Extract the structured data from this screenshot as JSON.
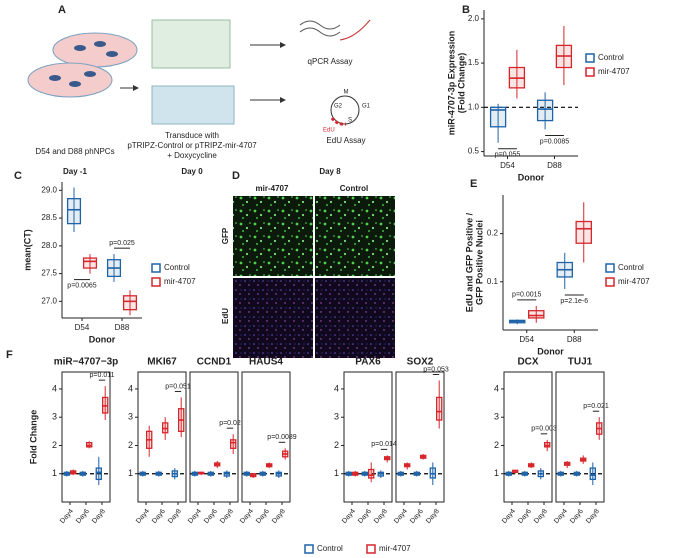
{
  "panel_labels": [
    "A",
    "B",
    "C",
    "D",
    "E",
    "F"
  ],
  "schematic": {
    "cells_label": "D54 and D88 phNPCs",
    "day_1": "Day -1",
    "transduce": [
      "Transduce with",
      "pTRIPZ-Control or pTRIPZ-mir-4707",
      "+ Doxycycline"
    ],
    "day_0": "Day 0",
    "qpcr": "qPCR Assay",
    "edu": "EdU Assay",
    "day_8": "Day 8",
    "cycle": [
      "M",
      "G1",
      "G2",
      "S",
      "EdU"
    ]
  },
  "microscopy": {
    "columns": [
      "mir-4707",
      "Control"
    ],
    "rows": [
      "GFP",
      "EdU"
    ]
  },
  "chart_data": [
    {
      "type": "box",
      "xlabel": "Donor",
      "ylabel": [
        "miR-4707-3p Expression",
        "(Fold Change)"
      ],
      "categories": [
        "D54",
        "D88"
      ],
      "series": [
        {
          "name": "Control",
          "color": "#1f63a8",
          "values": [
            [
              0.6,
              0.78,
              0.97,
              1.0,
              1.04
            ],
            [
              0.75,
              0.85,
              0.98,
              1.08,
              1.17
            ]
          ]
        },
        {
          "name": "mir-4707",
          "color": "#d6262b",
          "values": [
            [
              1.1,
              1.22,
              1.33,
              1.45,
              1.65
            ],
            [
              1.25,
              1.45,
              1.58,
              1.7,
              1.92
            ]
          ]
        }
      ],
      "ylim": [
        0.45,
        2.1
      ],
      "yticks": [
        {
          "value": 0.5,
          "label": "0.5"
        },
        {
          "value": 1,
          "label": "1.0"
        },
        {
          "value": 1.5,
          "label": "1.5"
        },
        {
          "value": 2,
          "label": "2.0"
        }
      ],
      "refline": 1,
      "annotations": [
        "p=0.055",
        "p=0.0085"
      ]
    },
    {
      "type": "box",
      "xlabel": "Donor",
      "ylabel": [
        "mean(CT)"
      ],
      "categories": [
        "D54",
        "D88"
      ],
      "series": [
        {
          "name": "Control",
          "color": "#1f63a8",
          "values": [
            [
              28.25,
              28.4,
              28.65,
              28.85,
              29.05
            ],
            [
              27.35,
              27.45,
              27.6,
              27.75,
              27.85
            ]
          ]
        },
        {
          "name": "mir-4707",
          "color": "#d6262b",
          "values": [
            [
              27.5,
              27.6,
              27.72,
              27.78,
              27.85
            ],
            [
              26.75,
              26.85,
              27.0,
              27.1,
              27.2
            ]
          ]
        }
      ],
      "ylim": [
        26.7,
        29.15
      ],
      "yticks": [
        {
          "value": 27,
          "label": "27.0"
        },
        27.5,
        {
          "value": 28,
          "label": "28.0"
        },
        28.5,
        {
          "value": 29,
          "label": "29.0"
        }
      ],
      "annotations": [
        "p=0.0065",
        "p=0.025"
      ]
    },
    {
      "type": "box",
      "xlabel": "Donor",
      "ylabel": [
        "EdU and GFP Positive /",
        "GFP Positive Nuclei"
      ],
      "categories": [
        "D54",
        "D88"
      ],
      "series": [
        {
          "name": "Control",
          "color": "#1f63a8",
          "values": [
            [
              0.012,
              0.015,
              0.018,
              0.02,
              0.022
            ],
            [
              0.085,
              0.11,
              0.125,
              0.14,
              0.16
            ]
          ]
        },
        {
          "name": "mir-4707",
          "color": "#d6262b",
          "values": [
            [
              0.015,
              0.025,
              0.03,
              0.04,
              0.05
            ],
            [
              0.14,
              0.18,
              0.21,
              0.225,
              0.265
            ]
          ]
        }
      ],
      "ylim": [
        0,
        0.28
      ],
      "yticks": [
        0.1,
        0.2
      ],
      "annotations": [
        "p=0.0015",
        "p=2.1e-6"
      ]
    },
    {
      "type": "box",
      "title": "miR−4707−3p",
      "ylabel": [
        "Fold Change"
      ],
      "categories": [
        "Day4",
        "Day6",
        "Day8"
      ],
      "series": [
        {
          "name": "Control",
          "color": "#1f63a8",
          "values": [
            [
              0.9,
              0.95,
              1,
              1.05,
              1.1
            ],
            [
              0.9,
              0.95,
              1,
              1.05,
              1.1
            ],
            [
              0.6,
              0.8,
              1.05,
              1.2,
              1.6
            ]
          ]
        },
        {
          "name": "mir-4707",
          "color": "#d6262b",
          "values": [
            [
              0.95,
              1,
              1.05,
              1.1,
              1.15
            ],
            [
              1.9,
              1.95,
              2.0,
              2.1,
              2.15
            ],
            [
              2.9,
              3.15,
              3.4,
              3.7,
              4.1
            ]
          ]
        }
      ],
      "ylim": [
        0,
        4.6
      ],
      "yticks": [
        1,
        2,
        3,
        4
      ],
      "refline": 1,
      "annotations": [
        "p=0.011"
      ]
    },
    {
      "type": "box",
      "title": "MKI67",
      "categories": [
        "Day4",
        "Day6",
        "Day8"
      ],
      "series": [
        {
          "name": "Control",
          "color": "#1f63a8",
          "values": [
            [
              0.9,
              0.95,
              1,
              1.05,
              1.1
            ],
            [
              0.9,
              0.95,
              1,
              1.05,
              1.1
            ],
            [
              0.8,
              0.9,
              1,
              1.1,
              1.2
            ]
          ]
        },
        {
          "name": "mir-4707",
          "color": "#d6262b",
          "values": [
            [
              1.6,
              1.9,
              2.2,
              2.5,
              2.7
            ],
            [
              2.2,
              2.45,
              2.6,
              2.8,
              3.0
            ],
            [
              2.3,
              2.5,
              2.9,
              3.3,
              3.7
            ]
          ]
        }
      ],
      "ylim": [
        0,
        4.6
      ],
      "yticks": [
        1,
        2,
        3,
        4
      ],
      "refline": 1,
      "annotations": [
        "p=0.051"
      ]
    },
    {
      "type": "box",
      "title": "CCND1",
      "categories": [
        "Day4",
        "Day6",
        "Day8"
      ],
      "series": [
        {
          "name": "Control",
          "color": "#1f63a8",
          "values": [
            [
              0.9,
              0.95,
              1,
              1.05,
              1.1
            ],
            [
              0.9,
              0.95,
              1,
              1.05,
              1.1
            ],
            [
              0.85,
              0.92,
              1,
              1.05,
              1.12
            ]
          ]
        },
        {
          "name": "mir-4707",
          "color": "#d6262b",
          "values": [
            [
              0.95,
              1,
              1.02,
              1.05,
              1.08
            ],
            [
              1.2,
              1.28,
              1.33,
              1.38,
              1.45
            ],
            [
              1.7,
              1.9,
              2.1,
              2.2,
              2.4
            ]
          ]
        }
      ],
      "ylim": [
        0,
        4.6
      ],
      "refline": 1,
      "annotations": [
        "p=0.02"
      ]
    },
    {
      "type": "box",
      "title": "HAUS4",
      "categories": [
        "Day4",
        "Day6",
        "Day8"
      ],
      "series": [
        {
          "name": "Control",
          "color": "#1f63a8",
          "values": [
            [
              0.9,
              0.95,
              1,
              1.05,
              1.1
            ],
            [
              0.9,
              0.95,
              1,
              1.05,
              1.1
            ],
            [
              0.85,
              0.92,
              1,
              1.05,
              1.12
            ]
          ]
        },
        {
          "name": "mir-4707",
          "color": "#d6262b",
          "values": [
            [
              0.85,
              0.9,
              0.95,
              1,
              1.02
            ],
            [
              1.2,
              1.25,
              1.3,
              1.35,
              1.4
            ],
            [
              1.5,
              1.6,
              1.7,
              1.8,
              1.9
            ]
          ]
        }
      ],
      "ylim": [
        0,
        4.6
      ],
      "refline": 1,
      "annotations": [
        "p=0.0089"
      ]
    },
    {
      "type": "box",
      "title": "PAX6",
      "categories": [
        "Day4",
        "Day6",
        "Day8"
      ],
      "series": [
        {
          "name": "Control",
          "color": "#1f63a8",
          "values": [
            [
              0.9,
              0.95,
              1,
              1.05,
              1.1
            ],
            [
              0.9,
              0.95,
              1,
              1.05,
              1.1
            ],
            [
              0.85,
              0.92,
              1,
              1.05,
              1.12
            ]
          ]
        },
        {
          "name": "mir-4707",
          "color": "#d6262b",
          "values": [
            [
              0.9,
              0.95,
              1,
              1.05,
              1.1
            ],
            [
              0.7,
              0.85,
              0.95,
              1.15,
              1.4
            ],
            [
              1.4,
              1.5,
              1.55,
              1.6,
              1.65
            ]
          ]
        }
      ],
      "ylim": [
        0,
        4.6
      ],
      "yticks": [
        1,
        2,
        3,
        4
      ],
      "refline": 1,
      "annotations": [
        "p=0.014"
      ]
    },
    {
      "type": "box",
      "title": "SOX2",
      "categories": [
        "Day4",
        "Day6",
        "Day8"
      ],
      "series": [
        {
          "name": "Control",
          "color": "#1f63a8",
          "values": [
            [
              0.9,
              0.95,
              1,
              1.05,
              1.1
            ],
            [
              0.9,
              0.95,
              1,
              1.05,
              1.1
            ],
            [
              0.6,
              0.85,
              1.0,
              1.2,
              1.4
            ]
          ]
        },
        {
          "name": "mir-4707",
          "color": "#d6262b",
          "values": [
            [
              1.15,
              1.25,
              1.3,
              1.35,
              1.4
            ],
            [
              1.5,
              1.55,
              1.6,
              1.65,
              1.7
            ],
            [
              2.6,
              2.9,
              3.2,
              3.7,
              4.3
            ]
          ]
        }
      ],
      "ylim": [
        0,
        4.6
      ],
      "refline": 1,
      "annotations": [
        "p=0.053"
      ]
    },
    {
      "type": "box",
      "title": "DCX",
      "categories": [
        "Day4",
        "Day6",
        "Day8"
      ],
      "series": [
        {
          "name": "Control",
          "color": "#1f63a8",
          "values": [
            [
              0.9,
              0.95,
              1,
              1.05,
              1.1
            ],
            [
              0.9,
              0.95,
              1,
              1.05,
              1.1
            ],
            [
              0.8,
              0.9,
              1,
              1.1,
              1.2
            ]
          ]
        },
        {
          "name": "mir-4707",
          "color": "#d6262b",
          "values": [
            [
              1,
              1.05,
              1.1,
              1.12,
              1.15
            ],
            [
              1.2,
              1.25,
              1.3,
              1.35,
              1.4
            ],
            [
              1.8,
              1.95,
              2.0,
              2.1,
              2.2
            ]
          ]
        }
      ],
      "ylim": [
        0,
        4.6
      ],
      "yticks": [
        1,
        2,
        3,
        4
      ],
      "refline": 1,
      "annotations": [
        "p=0.003"
      ]
    },
    {
      "type": "box",
      "title": "TUJ1",
      "categories": [
        "Day4",
        "Day6",
        "Day8"
      ],
      "series": [
        {
          "name": "Control",
          "color": "#1f63a8",
          "values": [
            [
              0.9,
              0.95,
              1,
              1.05,
              1.1
            ],
            [
              0.9,
              0.95,
              1,
              1.05,
              1.1
            ],
            [
              0.6,
              0.8,
              0.95,
              1.2,
              1.4
            ]
          ]
        },
        {
          "name": "mir-4707",
          "color": "#d6262b",
          "values": [
            [
              1.2,
              1.3,
              1.35,
              1.4,
              1.45
            ],
            [
              1.35,
              1.45,
              1.5,
              1.55,
              1.65
            ],
            [
              2.2,
              2.4,
              2.6,
              2.8,
              3.0
            ]
          ]
        }
      ],
      "ylim": [
        0,
        4.6
      ],
      "refline": 1,
      "annotations": [
        "p=0.021"
      ]
    }
  ]
}
